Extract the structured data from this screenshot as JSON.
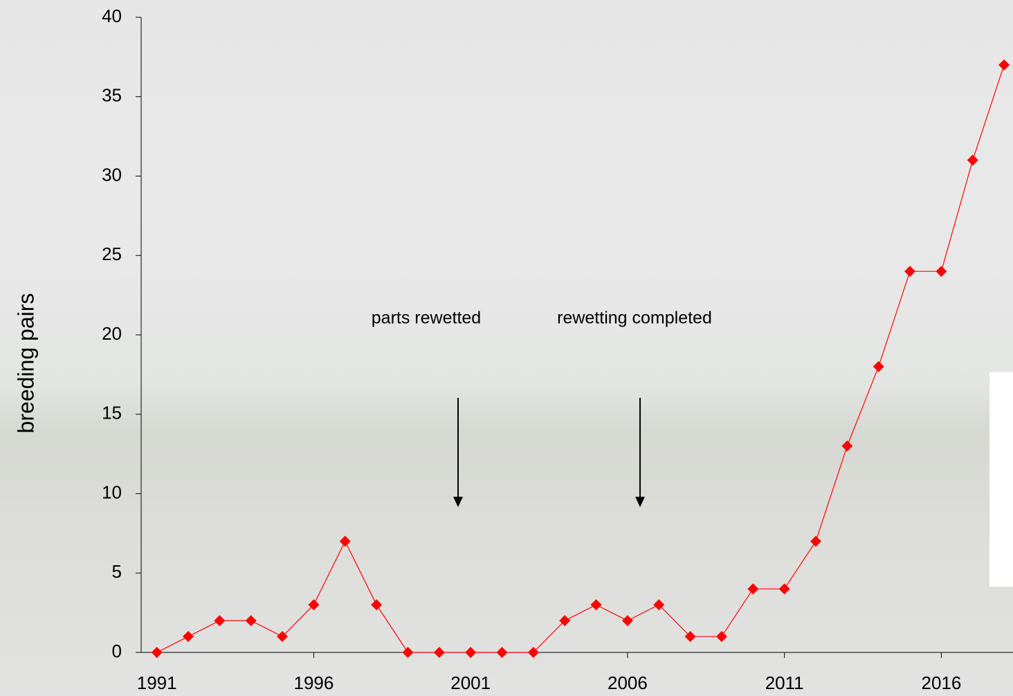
{
  "chart_data": {
    "type": "line",
    "y_label": "breeding pairs",
    "categories": [
      "1991",
      null,
      null,
      null,
      null,
      "1996",
      null,
      null,
      null,
      null,
      "2001",
      null,
      null,
      null,
      null,
      "2006",
      null,
      null,
      null,
      null,
      "2011",
      null,
      null,
      null,
      null,
      "2016",
      null,
      null
    ],
    "values": [
      0,
      1,
      2,
      2,
      1,
      3,
      7,
      3,
      0,
      0,
      0,
      0,
      0,
      2,
      3,
      2,
      3,
      1,
      1,
      4,
      4,
      7,
      13,
      18,
      24,
      24,
      31,
      37
    ],
    "color": "#ff0000",
    "ylim": [
      0,
      40
    ],
    "yticks": [
      0,
      5,
      10,
      15,
      20,
      25,
      30,
      35,
      40
    ],
    "annotations": [
      "parts rewetted",
      "rewetting completed"
    ]
  }
}
